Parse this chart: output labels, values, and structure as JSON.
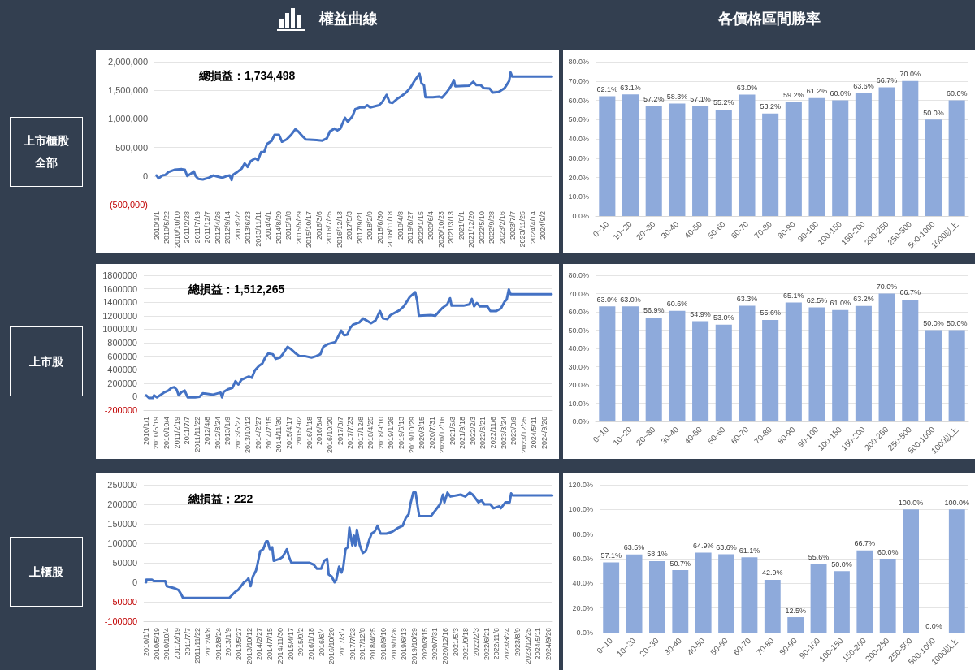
{
  "chart_data": [
    {
      "type": "line",
      "title": "權益曲線",
      "subtitle": "上市櫃股全部",
      "annotations": [
        "總損益：1,734,498"
      ],
      "color": "#4472c4",
      "marker": "none",
      "grid": "y",
      "x": [
        "2010-01-01",
        "2010-01-29",
        "2010-03-23",
        "2010-05-04",
        "2010-06-14",
        "2010-09-06",
        "2010-12-18",
        "2011-01-29",
        "2011-03-02",
        "2011-04-21",
        "2011-06-02",
        "2011-06-27",
        "2011-08-03",
        "2011-10-05",
        "2011-12-26",
        "2012-02-27",
        "2012-04-29",
        "2012-06-30",
        "2012-09-01",
        "2012-10-12",
        "2012-11-07",
        "2012-11-23",
        "2013-01-24",
        "2013-03-26",
        "2013-05-07",
        "2013-06-17",
        "2013-07-29",
        "2013-09-30",
        "2013-11-10",
        "2013-12-21",
        "2014-02-02",
        "2014-03-13",
        "2014-05-14",
        "2014-06-25",
        "2014-08-27",
        "2014-10-07",
        "2014-12-09",
        "2015-02-10",
        "2015-04-11",
        "2015-05-22",
        "2015-07-24",
        "2015-09-04",
        "2016-01-28",
        "2016-04-19",
        "2016-06-21",
        "2016-08-01",
        "2016-10-03",
        "2016-11-14",
        "2016-12-25",
        "2017-02-26",
        "2017-04-07",
        "2017-06-08",
        "2017-07-19",
        "2017-09-20",
        "2017-11-22",
        "2018-01-02",
        "2018-02-13",
        "2018-06-16",
        "2018-07-27",
        "2018-09-28",
        "2018-11-09",
        "2018-12-20",
        "2019-02-21",
        "2019-04-23",
        "2019-06-24",
        "2019-08-25",
        "2019-10-27",
        "2019-12-28",
        "2020-01-26",
        "2020-02-29",
        "2020-03-19",
        "2020-07-01",
        "2020-09-23",
        "2020-11-04",
        "2021-01-05",
        "2021-03-07",
        "2021-04-18",
        "2021-05-08",
        "2021-11-12",
        "2022-01-13",
        "2022-02-24",
        "2022-04-26",
        "2022-06-06",
        "2022-08-28",
        "2022-10-09",
        "2022-12-31",
        "2023-03-23",
        "2023-05-24",
        "2023-06-14",
        "2023-07-05",
        "2025-01-08"
      ],
      "values": [
        10000,
        -40000,
        10000,
        20000,
        70000,
        110000,
        120000,
        110000,
        0,
        40000,
        80000,
        0,
        -50000,
        -60000,
        -30000,
        10000,
        -10000,
        -30000,
        0,
        10000,
        -70000,
        20000,
        70000,
        130000,
        220000,
        160000,
        260000,
        310000,
        280000,
        420000,
        420000,
        560000,
        610000,
        720000,
        720000,
        600000,
        640000,
        720000,
        820000,
        780000,
        690000,
        640000,
        630000,
        620000,
        660000,
        780000,
        830000,
        800000,
        830000,
        1020000,
        950000,
        1040000,
        1170000,
        1200000,
        1200000,
        1240000,
        1200000,
        1240000,
        1290000,
        1420000,
        1290000,
        1280000,
        1350000,
        1400000,
        1460000,
        1550000,
        1680000,
        1790000,
        1620000,
        1590000,
        1380000,
        1380000,
        1390000,
        1370000,
        1460000,
        1570000,
        1680000,
        1570000,
        1580000,
        1650000,
        1590000,
        1590000,
        1540000,
        1530000,
        1460000,
        1470000,
        1540000,
        1660000,
        1810000,
        1740000,
        1740000
      ],
      "xlim": [
        "2009-12-01",
        "2025-01-15"
      ],
      "xticks": [
        {
          "value": "2010-01-01",
          "label": "2010/1/1"
        },
        {
          "value": "2010-05-22",
          "label": "2010/5/22"
        },
        {
          "value": "2010-10-10",
          "label": "2010/10/10"
        },
        {
          "value": "2011-02-28",
          "label": "2011/2/28"
        },
        {
          "value": "2011-07-19",
          "label": "2011/7/19"
        },
        {
          "value": "2011-12-07",
          "label": "2011/12/7"
        },
        {
          "value": "2012-04-26",
          "label": "2012/4/26"
        },
        {
          "value": "2012-09-14",
          "label": "2012/9/14"
        },
        {
          "value": "2013-02-02",
          "label": "2013/2/2"
        },
        {
          "value": "2013-06-23",
          "label": "2013/6/23"
        },
        {
          "value": "2013-11-11",
          "label": "2013/11/11"
        },
        {
          "value": "2014-04-01",
          "label": "2014/4/1"
        },
        {
          "value": "2014-08-20",
          "label": "2014/8/20"
        },
        {
          "value": "2015-01-08",
          "label": "2015/1/8"
        },
        {
          "value": "2015-05-29",
          "label": "2015/5/29"
        },
        {
          "value": "2015-10-17",
          "label": "2015/10/17"
        },
        {
          "value": "2016-03-06",
          "label": "2016/3/6"
        },
        {
          "value": "2016-07-25",
          "label": "2016/7/25"
        },
        {
          "value": "2016-12-13",
          "label": "2016/12/13"
        },
        {
          "value": "2017-05-03",
          "label": "2017/5/3"
        },
        {
          "value": "2017-09-21",
          "label": "2017/9/21"
        },
        {
          "value": "2018-02-09",
          "label": "2018/2/9"
        },
        {
          "value": "2018-06-30",
          "label": "2018/6/30"
        },
        {
          "value": "2018-11-18",
          "label": "2018/11/18"
        },
        {
          "value": "2019-04-08",
          "label": "2019/4/8"
        },
        {
          "value": "2019-08-27",
          "label": "2019/8/27"
        },
        {
          "value": "2020-01-15",
          "label": "2020/1/15"
        },
        {
          "value": "2020-06-04",
          "label": "2020/6/4"
        },
        {
          "value": "2020-10-23",
          "label": "2020/10/23"
        },
        {
          "value": "2021-03-13",
          "label": "2021/3/13"
        },
        {
          "value": "2021-08-01",
          "label": "2021/8/1"
        },
        {
          "value": "2021-12-20",
          "label": "2021/12/20"
        },
        {
          "value": "2022-05-10",
          "label": "2022/5/10"
        },
        {
          "value": "2022-09-28",
          "label": "2022/9/28"
        },
        {
          "value": "2023-02-16",
          "label": "2023/2/16"
        },
        {
          "value": "2023-07-07",
          "label": "2023/7/7"
        },
        {
          "value": "2023-11-25",
          "label": "2023/11/25"
        },
        {
          "value": "2024-04-14",
          "label": "2024/4/14"
        },
        {
          "value": "2024-09-02",
          "label": "2024/9/2"
        }
      ],
      "ylim": [
        -500000,
        2000000
      ],
      "yticks": [
        {
          "value": -500000,
          "label": "(500,000)"
        },
        0,
        {
          "value": 500000,
          "label": "500,000"
        },
        {
          "value": 1000000,
          "label": "1,000,000"
        },
        {
          "value": 1500000,
          "label": "1,500,000"
        },
        {
          "value": 2000000,
          "label": "2,000,000"
        }
      ]
    },
    {
      "type": "bar",
      "title": "各價格區間勝率",
      "color": "#8eaadb",
      "grid": "y",
      "categories": [
        "0~10",
        "10~20",
        "20~30",
        "30-40",
        "40-50",
        "50-60",
        "60-70",
        "70-80",
        "80-90",
        "90-100",
        "100-150",
        "150-200",
        "200-250",
        "250-500",
        "500-1000",
        "1000以上"
      ],
      "values": [
        62.1,
        63.1,
        57.2,
        58.3,
        57.1,
        55.2,
        63.0,
        53.2,
        59.2,
        61.2,
        60.0,
        63.6,
        66.7,
        70.0,
        50.0,
        60.0
      ],
      "value_labels": [
        "62.1%",
        "63.1%",
        "57.2%",
        "58.3%",
        "57.1%",
        "55.2%",
        "63.0%",
        "53.2%",
        "59.2%",
        "61.2%",
        "60.0%",
        "63.6%",
        "66.7%",
        "70.0%",
        "50.0%",
        "60.0%"
      ],
      "ylim": [
        0,
        80
      ],
      "yticks": [
        {
          "value": 0,
          "label": "0.0%"
        },
        {
          "value": 10,
          "label": "10.0%"
        },
        {
          "value": 20,
          "label": "20.0%"
        },
        {
          "value": 30,
          "label": "30.0%"
        },
        {
          "value": 40,
          "label": "40.0%"
        },
        {
          "value": 50,
          "label": "50.0%"
        },
        {
          "value": 60,
          "label": "60.0%"
        },
        {
          "value": 70,
          "label": "70.0%"
        },
        {
          "value": 80,
          "label": "80.0%"
        }
      ]
    },
    {
      "type": "line",
      "subtitle": "上市股",
      "annotations": [
        "總損益：1,512,265"
      ],
      "color": "#4472c4",
      "marker": "none",
      "grid": "y",
      "x": [
        "2010-01-01",
        "2010-02-11",
        "2010-04-02",
        "2010-04-18",
        "2010-05-28",
        "2010-07-08",
        "2010-08-29",
        "2010-10-29",
        "2010-12-09",
        "2011-01-18",
        "2011-02-20",
        "2011-03-18",
        "2011-04-28",
        "2011-06-07",
        "2011-06-27",
        "2011-07-17",
        "2011-10-26",
        "2011-12-26",
        "2012-02-06",
        "2012-06-25",
        "2012-10-04",
        "2012-10-24",
        "2012-11-14",
        "2013-01-13",
        "2013-03-13",
        "2013-04-23",
        "2013-06-02",
        "2013-07-12",
        "2013-09-11",
        "2013-10-21",
        "2013-12-01",
        "2014-01-11",
        "2014-03-10",
        "2014-04-20",
        "2014-05-30",
        "2014-07-09",
        "2014-09-09",
        "2014-10-19",
        "2014-12-18",
        "2015-01-28",
        "2015-03-28",
        "2015-05-07",
        "2015-07-07",
        "2015-09-07",
        "2015-11-26",
        "2016-02-15",
        "2016-04-15",
        "2016-06-14",
        "2016-07-24",
        "2016-09-24",
        "2017-01-03",
        "2017-02-13",
        "2017-03-23",
        "2017-05-03",
        "2017-06-12",
        "2017-07-22",
        "2017-09-01",
        "2017-11-21",
        "2018-01-13",
        "2018-02-28",
        "2018-04-30",
        "2018-06-29",
        "2018-08-29",
        "2018-10-09",
        "2018-12-08",
        "2019-01-18",
        "2019-05-17",
        "2019-07-17",
        "2019-08-27",
        "2019-10-06",
        "2019-12-18",
        "2020-01-15",
        "2020-02-05",
        "2020-07-14",
        "2020-09-14",
        "2020-10-24",
        "2020-12-23",
        "2021-02-23",
        "2021-04-02",
        "2021-04-22",
        "2021-10-01",
        "2021-12-20",
        "2022-01-22",
        "2022-02-20",
        "2022-03-30",
        "2022-05-10",
        "2022-08-19",
        "2022-09-29",
        "2022-12-18",
        "2023-02-18",
        "2023-04-09",
        "2023-05-07",
        "2023-06-05",
        "2023-06-29",
        "2025-01-03"
      ],
      "values": [
        20000,
        -20000,
        -20000,
        20000,
        -10000,
        20000,
        60000,
        90000,
        130000,
        140000,
        100000,
        20000,
        70000,
        90000,
        40000,
        -10000,
        -10000,
        0,
        50000,
        30000,
        60000,
        -10000,
        70000,
        110000,
        130000,
        230000,
        180000,
        250000,
        280000,
        300000,
        280000,
        390000,
        460000,
        490000,
        580000,
        640000,
        630000,
        560000,
        580000,
        640000,
        740000,
        710000,
        650000,
        600000,
        600000,
        580000,
        600000,
        630000,
        740000,
        780000,
        810000,
        900000,
        980000,
        910000,
        920000,
        1020000,
        1070000,
        1100000,
        1160000,
        1130000,
        1090000,
        1130000,
        1270000,
        1160000,
        1150000,
        1210000,
        1280000,
        1340000,
        1410000,
        1480000,
        1550000,
        1410000,
        1200000,
        1210000,
        1200000,
        1250000,
        1320000,
        1370000,
        1460000,
        1350000,
        1350000,
        1370000,
        1450000,
        1340000,
        1390000,
        1340000,
        1340000,
        1270000,
        1270000,
        1310000,
        1410000,
        1440000,
        1590000,
        1520000,
        1520000
      ],
      "xlim": [
        "2009-12-01",
        "2025-01-15"
      ],
      "xticks": [
        {
          "value": "2010-01-01",
          "label": "2010/1/1"
        },
        {
          "value": "2010-05-19",
          "label": "2010/5/19"
        },
        {
          "value": "2010-10-04",
          "label": "2010/10/4"
        },
        {
          "value": "2011-02-19",
          "label": "2011/2/19"
        },
        {
          "value": "2011-07-07",
          "label": "2011/7/7"
        },
        {
          "value": "2011-11-22",
          "label": "2011/11/22"
        },
        {
          "value": "2012-04-08",
          "label": "2012/4/8"
        },
        {
          "value": "2012-08-24",
          "label": "2012/8/24"
        },
        {
          "value": "2013-01-09",
          "label": "2013/1/9"
        },
        {
          "value": "2013-05-27",
          "label": "2013/5/27"
        },
        {
          "value": "2013-10-12",
          "label": "2013/10/12"
        },
        {
          "value": "2014-02-27",
          "label": "2014/2/27"
        },
        {
          "value": "2014-07-15",
          "label": "2014/7/15"
        },
        {
          "value": "2014-11-30",
          "label": "2014/11/30"
        },
        {
          "value": "2015-04-17",
          "label": "2015/4/17"
        },
        {
          "value": "2015-09-02",
          "label": "2015/9/2"
        },
        {
          "value": "2016-01-18",
          "label": "2016/1/18"
        },
        {
          "value": "2016-06-04",
          "label": "2016/6/4"
        },
        {
          "value": "2016-10-20",
          "label": "2016/10/20"
        },
        {
          "value": "2017-03-07",
          "label": "2017/3/7"
        },
        {
          "value": "2017-07-23",
          "label": "2017/7/23"
        },
        {
          "value": "2017-12-08",
          "label": "2017/12/8"
        },
        {
          "value": "2018-04-25",
          "label": "2018/4/25"
        },
        {
          "value": "2018-09-10",
          "label": "2018/9/10"
        },
        {
          "value": "2019-01-26",
          "label": "2019/1/26"
        },
        {
          "value": "2019-06-13",
          "label": "2019/6/13"
        },
        {
          "value": "2019-10-29",
          "label": "2019/10/29"
        },
        {
          "value": "2020-03-15",
          "label": "2020/3/15"
        },
        {
          "value": "2020-07-31",
          "label": "2020/7/31"
        },
        {
          "value": "2020-12-16",
          "label": "2020/12/16"
        },
        {
          "value": "2021-05-03",
          "label": "2021/5/3"
        },
        {
          "value": "2021-09-18",
          "label": "2021/9/18"
        },
        {
          "value": "2022-02-03",
          "label": "2022/2/3"
        },
        {
          "value": "2022-06-21",
          "label": "2022/6/21"
        },
        {
          "value": "2022-11-06",
          "label": "2022/11/6"
        },
        {
          "value": "2023-03-24",
          "label": "2023/3/24"
        },
        {
          "value": "2023-08-09",
          "label": "2023/8/9"
        },
        {
          "value": "2023-12-25",
          "label": "2023/12/25"
        },
        {
          "value": "2024-05-11",
          "label": "2024/5/11"
        },
        {
          "value": "2024-09-26",
          "label": "2024/9/26"
        }
      ],
      "ylim": [
        -200000,
        1800000
      ],
      "yticks": [
        -200000,
        0,
        200000,
        400000,
        600000,
        800000,
        1000000,
        1200000,
        1400000,
        1600000,
        1800000
      ]
    },
    {
      "type": "bar",
      "color": "#8eaadb",
      "grid": "y",
      "categories": [
        "0~10",
        "10~20",
        "20~30",
        "30-40",
        "40-50",
        "50-60",
        "60-70",
        "70-80",
        "80-90",
        "90-100",
        "100-150",
        "150-200",
        "200-250",
        "250-500",
        "500-1000",
        "1000以上"
      ],
      "values": [
        63.0,
        63.0,
        56.9,
        60.6,
        54.9,
        53.0,
        63.3,
        55.6,
        65.1,
        62.5,
        61.0,
        63.2,
        70.0,
        66.7,
        50.0,
        50.0
      ],
      "value_labels": [
        "63.0%",
        "63.0%",
        "56.9%",
        "60.6%",
        "54.9%",
        "53.0%",
        "63.3%",
        "55.6%",
        "65.1%",
        "62.5%",
        "61.0%",
        "63.2%",
        "70.0%",
        "66.7%",
        "50.0%",
        "50.0%"
      ],
      "ylim": [
        0,
        80
      ],
      "yticks": [
        {
          "value": 0,
          "label": "0.0%"
        },
        {
          "value": 10,
          "label": "10.0%"
        },
        {
          "value": 20,
          "label": "20.0%"
        },
        {
          "value": 30,
          "label": "30.0%"
        },
        {
          "value": 40,
          "label": "40.0%"
        },
        {
          "value": 50,
          "label": "50.0%"
        },
        {
          "value": 60,
          "label": "60.0%"
        },
        {
          "value": 70,
          "label": "70.0%"
        },
        {
          "value": 80,
          "label": "80.0%"
        }
      ]
    },
    {
      "type": "line",
      "subtitle": "上櫃股",
      "annotations": [
        "總損益：222"
      ],
      "color": "#4472c4",
      "marker": "none",
      "grid": "y",
      "x": [
        "2010-01-01",
        "2010-01-05",
        "2010-03-19",
        "2010-04-09",
        "2010-09-15",
        "2010-10-05",
        "2011-01-13",
        "2011-03-12",
        "2011-04-13",
        "2011-05-10",
        "2013-01-17",
        "2013-04-05",
        "2013-05-15",
        "2013-06-24",
        "2013-08-03",
        "2013-09-12",
        "2013-10-01",
        "2013-10-29",
        "2013-11-30",
        "2014-01-10",
        "2014-01-29",
        "2014-02-19",
        "2014-03-08",
        "2014-04-17",
        "2014-05-27",
        "2014-06-16",
        "2014-07-14",
        "2014-08-15",
        "2014-09-05",
        "2014-11-23",
        "2015-01-02",
        "2015-02-28",
        "2015-03-28",
        "2015-04-29",
        "2015-12-24",
        "2016-02-23",
        "2016-04-02",
        "2016-06-01",
        "2016-07-10",
        "2016-08-19",
        "2016-09-09",
        "2016-10-18",
        "2016-11-27",
        "2016-12-17",
        "2017-01-26",
        "2017-02-27",
        "2017-03-24",
        "2017-04-22",
        "2017-05-23",
        "2017-06-13",
        "2017-07-22",
        "2017-08-12",
        "2017-09-01",
        "2017-09-21",
        "2017-10-30",
        "2017-12-09",
        "2018-01-18",
        "2018-02-27",
        "2018-04-06",
        "2018-05-16",
        "2018-06-25",
        "2018-08-04",
        "2018-10-22",
        "2019-01-11",
        "2019-03-29",
        "2019-05-27",
        "2019-07-07",
        "2019-08-16",
        "2019-09-06",
        "2019-10-15",
        "2019-11-16",
        "2019-12-13",
        "2020-01-03",
        "2020-06-09",
        "2020-07-19",
        "2020-10-07",
        "2020-11-16",
        "2020-12-06",
        "2021-01-15",
        "2021-02-24",
        "2021-07-11",
        "2021-09-10",
        "2021-11-09",
        "2021-12-18",
        "2022-01-27",
        "2022-03-06",
        "2022-04-15",
        "2022-05-24",
        "2022-08-12",
        "2022-09-22",
        "2022-12-10",
        "2022-12-30",
        "2023-02-28",
        "2023-04-27",
        "2023-05-17",
        "2023-06-06",
        "2024-11-17"
      ],
      "values": [
        0,
        7000,
        7000,
        3000,
        3000,
        -10000,
        -15000,
        -20000,
        -30000,
        -40000,
        -40000,
        -25000,
        -20000,
        -10000,
        0,
        5000,
        10000,
        -10000,
        15000,
        30000,
        45000,
        65000,
        80000,
        85000,
        105000,
        105000,
        85000,
        90000,
        55000,
        60000,
        65000,
        85000,
        65000,
        50000,
        50000,
        45000,
        35000,
        35000,
        55000,
        60000,
        20000,
        15000,
        0,
        5000,
        40000,
        25000,
        40000,
        85000,
        90000,
        140000,
        95000,
        120000,
        95000,
        135000,
        95000,
        75000,
        80000,
        105000,
        125000,
        130000,
        145000,
        125000,
        125000,
        130000,
        140000,
        145000,
        165000,
        175000,
        200000,
        230000,
        230000,
        195000,
        170000,
        170000,
        180000,
        200000,
        225000,
        205000,
        230000,
        220000,
        225000,
        220000,
        230000,
        225000,
        215000,
        205000,
        210000,
        200000,
        200000,
        190000,
        195000,
        190000,
        205000,
        205000,
        228000,
        223000,
        223000
      ],
      "xlim": [
        "2009-12-01",
        "2024-11-20"
      ],
      "xticks": [
        {
          "value": "2010-01-01",
          "label": "2010/1/1"
        },
        {
          "value": "2010-05-19",
          "label": "2010/5/19"
        },
        {
          "value": "2010-10-04",
          "label": "2010/10/4"
        },
        {
          "value": "2011-02-19",
          "label": "2011/2/19"
        },
        {
          "value": "2011-07-07",
          "label": "2011/7/7"
        },
        {
          "value": "2011-11-22",
          "label": "2011/11/22"
        },
        {
          "value": "2012-04-08",
          "label": "2012/4/8"
        },
        {
          "value": "2012-08-24",
          "label": "2012/8/24"
        },
        {
          "value": "2013-01-09",
          "label": "2013/1/9"
        },
        {
          "value": "2013-05-27",
          "label": "2013/5/27"
        },
        {
          "value": "2013-10-12",
          "label": "2013/10/12"
        },
        {
          "value": "2014-02-27",
          "label": "2014/2/27"
        },
        {
          "value": "2014-07-15",
          "label": "2014/7/15"
        },
        {
          "value": "2014-11-30",
          "label": "2014/11/30"
        },
        {
          "value": "2015-04-17",
          "label": "2015/4/17"
        },
        {
          "value": "2015-09-02",
          "label": "2015/9/2"
        },
        {
          "value": "2016-01-18",
          "label": "2016/1/18"
        },
        {
          "value": "2016-06-04",
          "label": "2016/6/4"
        },
        {
          "value": "2016-10-20",
          "label": "2016/10/20"
        },
        {
          "value": "2017-03-07",
          "label": "2017/3/7"
        },
        {
          "value": "2017-07-23",
          "label": "2017/7/23"
        },
        {
          "value": "2017-12-08",
          "label": "2017/12/8"
        },
        {
          "value": "2018-04-25",
          "label": "2018/4/25"
        },
        {
          "value": "2018-09-10",
          "label": "2018/9/10"
        },
        {
          "value": "2019-01-26",
          "label": "2019/1/26"
        },
        {
          "value": "2019-06-13",
          "label": "2019/6/13"
        },
        {
          "value": "2019-10-29",
          "label": "2019/10/29"
        },
        {
          "value": "2020-03-15",
          "label": "2020/3/15"
        },
        {
          "value": "2020-07-31",
          "label": "2020/7/31"
        },
        {
          "value": "2020-12-16",
          "label": "2020/12/16"
        },
        {
          "value": "2021-05-03",
          "label": "2021/5/3"
        },
        {
          "value": "2021-09-18",
          "label": "2021/9/18"
        },
        {
          "value": "2022-02-03",
          "label": "2022/2/3"
        },
        {
          "value": "2022-06-21",
          "label": "2022/6/21"
        },
        {
          "value": "2022-11-06",
          "label": "2022/11/6"
        },
        {
          "value": "2023-03-24",
          "label": "2023/3/24"
        },
        {
          "value": "2023-08-09",
          "label": "2023/8/9"
        },
        {
          "value": "2023-12-25",
          "label": "2023/12/25"
        },
        {
          "value": "2024-05-11",
          "label": "2024/5/11"
        },
        {
          "value": "2024-09-26",
          "label": "2024/9/26"
        }
      ],
      "ylim": [
        -100000,
        250000
      ],
      "yticks": [
        -100000,
        -50000,
        0,
        50000,
        100000,
        150000,
        200000,
        250000
      ]
    },
    {
      "type": "bar",
      "color": "#8eaadb",
      "grid": "y",
      "categories": [
        "0~10",
        "10~20",
        "20~30",
        "30-40",
        "40-50",
        "50-60",
        "60-70",
        "70-80",
        "80-90",
        "90-100",
        "100-150",
        "150-200",
        "200-250",
        "250-500",
        "500-1000",
        "1000以上"
      ],
      "values": [
        57.1,
        63.5,
        58.1,
        50.7,
        64.9,
        63.6,
        61.1,
        42.9,
        12.5,
        55.6,
        50.0,
        66.7,
        60.0,
        100.0,
        0.0,
        100.0
      ],
      "value_labels": [
        "57.1%",
        "63.5%",
        "58.1%",
        "50.7%",
        "64.9%",
        "63.6%",
        "61.1%",
        "42.9%",
        "12.5%",
        "55.6%",
        "50.0%",
        "66.7%",
        "60.0%",
        "100.0%",
        "0.0%",
        "100.0%"
      ],
      "ylim": [
        0,
        120
      ],
      "yticks": [
        {
          "value": 0,
          "label": "0.0%"
        },
        {
          "value": 20,
          "label": "20.0%"
        },
        {
          "value": 40,
          "label": "40.0%"
        },
        {
          "value": 60,
          "label": "60.0%"
        },
        {
          "value": 80,
          "label": "80.0%"
        },
        {
          "value": 100,
          "label": "100.0%"
        },
        {
          "value": 120,
          "label": "120.0%"
        }
      ]
    }
  ]
}
